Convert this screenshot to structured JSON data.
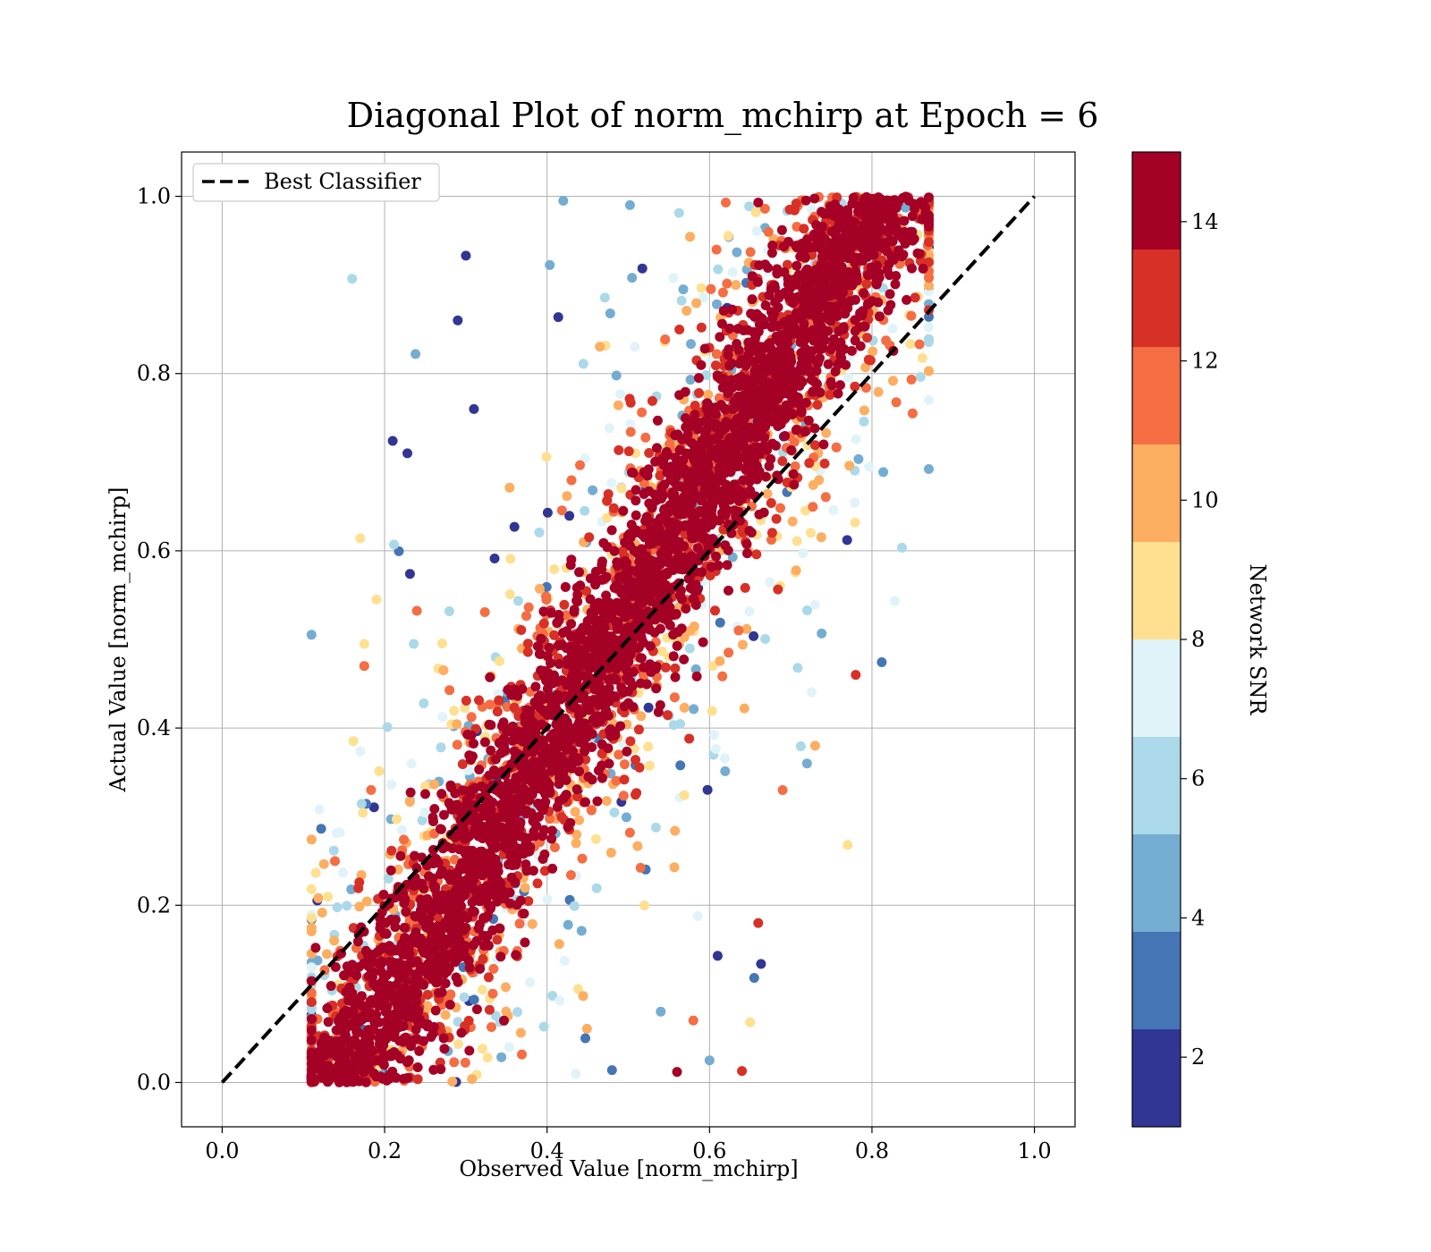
{
  "chart_data": {
    "type": "scatter",
    "title": "Diagonal Plot of norm_mchirp at Epoch = 6",
    "xlabel": "Observed Value [norm_mchirp]",
    "ylabel": "Actual Value [norm_mchirp]",
    "xlim": [
      -0.05,
      1.05
    ],
    "ylim": [
      -0.05,
      1.05
    ],
    "xticks": [
      0.0,
      0.2,
      0.4,
      0.6,
      0.8,
      1.0
    ],
    "yticks": [
      0.0,
      0.2,
      0.4,
      0.6,
      0.8,
      1.0
    ],
    "xtick_labels": [
      "0.0",
      "0.2",
      "0.4",
      "0.6",
      "0.8",
      "1.0"
    ],
    "ytick_labels": [
      "0.0",
      "0.2",
      "0.4",
      "0.6",
      "0.8",
      "1.0"
    ],
    "grid": true,
    "legend": {
      "placement": "top-left",
      "entries": [
        "Best Classifier"
      ]
    },
    "reference_line": {
      "name": "Best Classifier",
      "style": "dashed",
      "color": "#000000",
      "x": [
        0.0,
        1.0
      ],
      "y": [
        0.0,
        1.0
      ]
    },
    "scatter_summary": {
      "x_range": [
        0.12,
        0.86
      ],
      "y_range": [
        0.0,
        1.0
      ],
      "description_trend": "points cluster around a band parallel to the diagonal; lower SNR points spread further from the diagonal"
    },
    "colorbar": {
      "label": "Network SNR",
      "cmap": "RdYlBu_r",
      "vmin": 1,
      "vmax": 15,
      "ticks": [
        2,
        4,
        6,
        8,
        10,
        12,
        14
      ],
      "tick_labels": [
        "2",
        "4",
        "6",
        "8",
        "10",
        "12",
        "14"
      ],
      "levels": [
        1,
        2.4,
        3.8,
        5.2,
        6.6,
        8.0,
        9.4,
        10.8,
        12.2,
        13.6,
        15
      ],
      "colors": [
        "#313695",
        "#4575b4",
        "#74add1",
        "#abd9e9",
        "#e0f3f8",
        "#fee090",
        "#fdae61",
        "#f46d43",
        "#d73027",
        "#a50026"
      ]
    },
    "sample_points": [
      {
        "x": 0.16,
        "y": 0.907,
        "snr": 6.5
      },
      {
        "x": 0.21,
        "y": 0.724,
        "snr": 2
      },
      {
        "x": 0.228,
        "y": 0.71,
        "snr": 2
      },
      {
        "x": 0.238,
        "y": 0.822,
        "snr": 4
      },
      {
        "x": 0.77,
        "y": 0.268,
        "snr": 9
      },
      {
        "x": 0.655,
        "y": 0.118,
        "snr": 3
      },
      {
        "x": 0.66,
        "y": 0.18,
        "snr": 13
      },
      {
        "x": 0.64,
        "y": 0.013,
        "snr": 13
      },
      {
        "x": 0.86,
        "y": 0.927,
        "snr": 13
      },
      {
        "x": 0.85,
        "y": 0.755,
        "snr": 12
      },
      {
        "x": 0.115,
        "y": 0.152,
        "snr": 14
      },
      {
        "x": 0.16,
        "y": 0.02,
        "snr": 14
      },
      {
        "x": 0.42,
        "y": 0.995,
        "snr": 4
      },
      {
        "x": 0.66,
        "y": 0.993,
        "snr": 14
      },
      {
        "x": 0.62,
        "y": 0.993,
        "snr": 12
      },
      {
        "x": 0.3,
        "y": 0.933,
        "snr": 2
      },
      {
        "x": 0.29,
        "y": 0.86,
        "snr": 2
      },
      {
        "x": 0.31,
        "y": 0.76,
        "snr": 2
      },
      {
        "x": 0.48,
        "y": 0.014,
        "snr": 3
      },
      {
        "x": 0.56,
        "y": 0.012,
        "snr": 14
      },
      {
        "x": 0.61,
        "y": 0.143,
        "snr": 2
      },
      {
        "x": 0.54,
        "y": 0.08,
        "snr": 5
      },
      {
        "x": 0.65,
        "y": 0.068,
        "snr": 8
      },
      {
        "x": 0.69,
        "y": 0.33,
        "snr": 11
      },
      {
        "x": 0.73,
        "y": 0.38,
        "snr": 10
      },
      {
        "x": 0.72,
        "y": 0.36,
        "snr": 4
      },
      {
        "x": 0.78,
        "y": 0.46,
        "snr": 13
      },
      {
        "x": 0.175,
        "y": 0.47,
        "snr": 12
      },
      {
        "x": 0.175,
        "y": 0.495,
        "snr": 9
      },
      {
        "x": 0.17,
        "y": 0.614,
        "snr": 9
      },
      {
        "x": 0.19,
        "y": 0.545,
        "snr": 9
      },
      {
        "x": 0.6,
        "y": 0.025,
        "snr": 4
      },
      {
        "x": 0.58,
        "y": 0.07,
        "snr": 12
      },
      {
        "x": 0.84,
        "y": 0.96,
        "snr": 14
      },
      {
        "x": 0.85,
        "y": 0.95,
        "snr": 14
      }
    ]
  }
}
